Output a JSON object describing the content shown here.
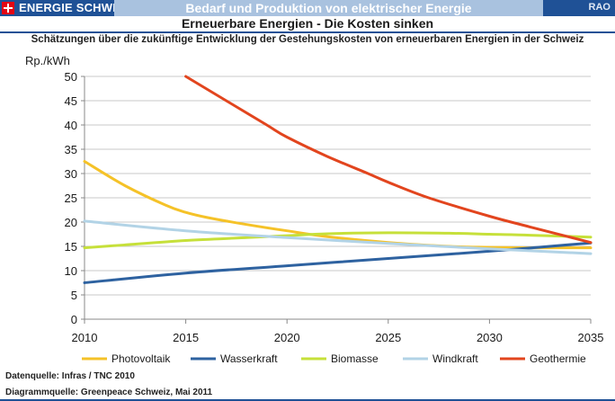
{
  "header": {
    "brand": "ENERGIE SCHWEIZ",
    "topic": "Bedarf und Produktion von elektrischer Energie",
    "tag": "RAO",
    "subtitle": "Erneuerbare Energien - Die Kosten sinken",
    "description": "Schätzungen über die zukünftige Entwicklung der Gestehungskosten von erneuerbaren Energien in der Schweiz"
  },
  "chart_data": {
    "type": "line",
    "title": "",
    "ylabel": "Rp./kWh",
    "xlabel": "",
    "xlim": [
      2010,
      2035
    ],
    "ylim": [
      0,
      50
    ],
    "xticks": [
      2010,
      2015,
      2020,
      2025,
      2030,
      2035
    ],
    "yticks": [
      0,
      5,
      10,
      15,
      20,
      25,
      30,
      35,
      40,
      45,
      50
    ],
    "grid": "horizontal",
    "legend": "bottom",
    "series": [
      {
        "name": "Photovoltaik",
        "color": "#f5c228",
        "x": [
          2010,
          2012,
          2014,
          2015,
          2016,
          2018,
          2020,
          2022,
          2025,
          2028,
          2030,
          2032,
          2035
        ],
        "y": [
          32.5,
          27.5,
          23.5,
          22.0,
          21.0,
          19.5,
          18.2,
          17.0,
          15.8,
          15.0,
          14.8,
          14.7,
          14.7
        ]
      },
      {
        "name": "Wasserkraft",
        "color": "#2e62a0",
        "x": [
          2010,
          2015,
          2020,
          2025,
          2030,
          2035
        ],
        "y": [
          7.5,
          9.5,
          11.0,
          12.5,
          14.0,
          15.7
        ]
      },
      {
        "name": "Biomasse",
        "color": "#c6e03a",
        "x": [
          2010,
          2012,
          2015,
          2018,
          2020,
          2022,
          2025,
          2028,
          2030,
          2032,
          2035
        ],
        "y": [
          14.7,
          15.3,
          16.2,
          16.8,
          17.2,
          17.6,
          17.8,
          17.7,
          17.5,
          17.3,
          16.9
        ]
      },
      {
        "name": "Windkraft",
        "color": "#b2d3e6",
        "x": [
          2010,
          2015,
          2020,
          2025,
          2030,
          2035
        ],
        "y": [
          20.2,
          18.2,
          16.8,
          15.6,
          14.5,
          13.5
        ]
      },
      {
        "name": "Geothermie",
        "color": "#e2451e",
        "x": [
          2015,
          2017,
          2019,
          2020,
          2022,
          2024,
          2025,
          2027,
          2030,
          2032,
          2035
        ],
        "y": [
          50.0,
          45.0,
          40.0,
          37.5,
          33.5,
          30.0,
          28.2,
          25.0,
          21.2,
          19.0,
          15.8
        ]
      }
    ]
  },
  "footer": {
    "data_source": "Datenquelle: Infras / TNC 2010",
    "diagram_source": "Diagrammquelle: Greenpeace Schweiz, Mai 2011"
  }
}
